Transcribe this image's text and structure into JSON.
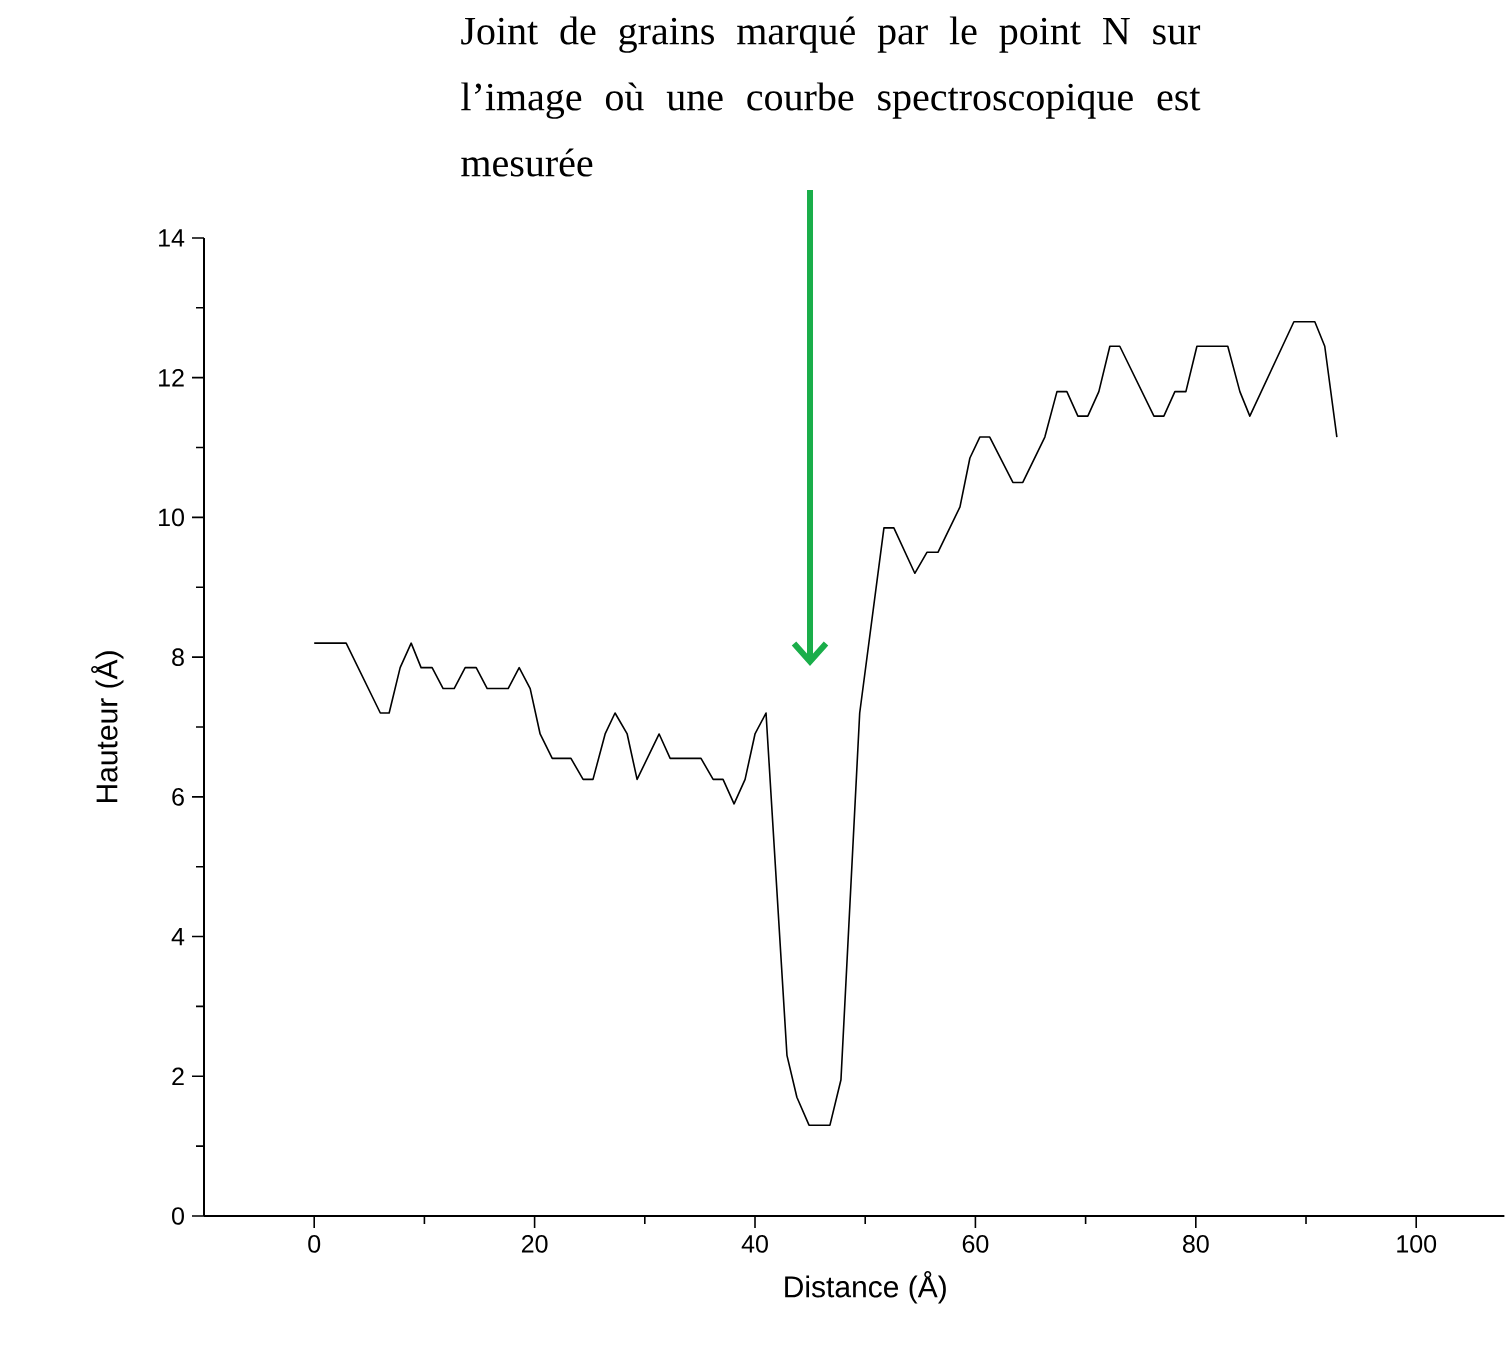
{
  "chart_data": {
    "type": "line",
    "xlabel": "Distance (Å)",
    "ylabel": "Hauteur (Å)",
    "annotations": [
      "Joint de grains marqué par le point N sur l’image où une courbe spectroscopique est mesurée"
    ],
    "series": [
      {
        "color": "#000000",
        "x": [
          0,
          2.9,
          6.0,
          6.8,
          7.8,
          8.8,
          9.7,
          10.7,
          11.7,
          12.7,
          13.7,
          14.7,
          15.7,
          17.6,
          18.6,
          19.6,
          20.5,
          21.6,
          23.3,
          24.4,
          25.3,
          26.4,
          27.3,
          28.4,
          29.3,
          31.3,
          32.3,
          35.1,
          36.2,
          37.1,
          38.1,
          39.1,
          40.0,
          41.0,
          42.9,
          43.8,
          44.9,
          46.8,
          47.8,
          49.5,
          51.7,
          52.6,
          54.5,
          55.6,
          56.6,
          58.6,
          59.5,
          60.4,
          61.3,
          63.4,
          64.3,
          66.3,
          67.4,
          68.3,
          69.3,
          70.2,
          71.2,
          72.2,
          73.1,
          76.2,
          77.1,
          78.1,
          79.1,
          80.1,
          82.9,
          84.0,
          84.9,
          88.9,
          90.8,
          91.7,
          92.8
        ],
        "values": [
          8.2,
          8.2,
          7.2,
          7.2,
          7.85,
          8.2,
          7.85,
          7.85,
          7.55,
          7.55,
          7.85,
          7.85,
          7.55,
          7.55,
          7.85,
          7.55,
          6.9,
          6.55,
          6.55,
          6.25,
          6.25,
          6.9,
          7.2,
          6.9,
          6.25,
          6.9,
          6.55,
          6.55,
          6.25,
          6.25,
          5.9,
          6.25,
          6.9,
          7.2,
          2.3,
          1.7,
          1.3,
          1.3,
          1.95,
          7.2,
          9.85,
          9.85,
          9.2,
          9.5,
          9.5,
          10.15,
          10.85,
          11.15,
          11.15,
          10.5,
          10.5,
          11.15,
          11.8,
          11.8,
          11.45,
          11.45,
          11.8,
          12.45,
          12.45,
          11.45,
          11.45,
          11.8,
          11.8,
          12.45,
          12.45,
          11.8,
          11.45,
          12.8,
          12.8,
          12.45,
          11.15
        ]
      }
    ],
    "xlim": [
      -10,
      108
    ],
    "ylim": [
      0,
      14
    ],
    "xticks": [
      0,
      20,
      40,
      60,
      80,
      100
    ],
    "yticks": [
      0,
      2,
      4,
      6,
      8,
      10,
      12,
      14
    ],
    "grid": false,
    "line_style": "solid"
  }
}
